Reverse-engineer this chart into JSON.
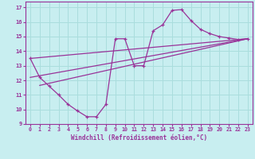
{
  "xlabel": "Windchill (Refroidissement éolien,°C)",
  "background_color": "#c8eef0",
  "grid_color": "#aadddd",
  "line_color": "#993399",
  "xlim": [
    -0.5,
    23.5
  ],
  "ylim": [
    9,
    17.4
  ],
  "xticks": [
    0,
    1,
    2,
    3,
    4,
    5,
    6,
    7,
    8,
    9,
    10,
    11,
    12,
    13,
    14,
    15,
    16,
    17,
    18,
    19,
    20,
    21,
    22,
    23
  ],
  "yticks": [
    9,
    10,
    11,
    12,
    13,
    14,
    15,
    16,
    17
  ],
  "curve1_x": [
    0,
    1,
    2,
    3,
    4,
    5,
    6,
    7,
    8,
    9,
    10,
    11,
    12,
    13,
    14,
    15,
    16,
    17,
    18,
    19,
    20,
    21,
    22,
    23
  ],
  "curve1_y": [
    13.5,
    12.2,
    11.6,
    11.0,
    10.35,
    9.9,
    9.5,
    9.5,
    10.35,
    14.85,
    14.85,
    13.0,
    13.0,
    15.4,
    15.8,
    16.8,
    16.85,
    16.1,
    15.5,
    15.2,
    15.0,
    14.9,
    14.8,
    14.85
  ],
  "curve2_x": [
    0,
    23
  ],
  "curve2_y": [
    12.2,
    14.85
  ],
  "curve3_x": [
    1,
    23
  ],
  "curve3_y": [
    11.65,
    14.85
  ],
  "curve4_x": [
    0,
    23
  ],
  "curve4_y": [
    13.5,
    14.85
  ]
}
